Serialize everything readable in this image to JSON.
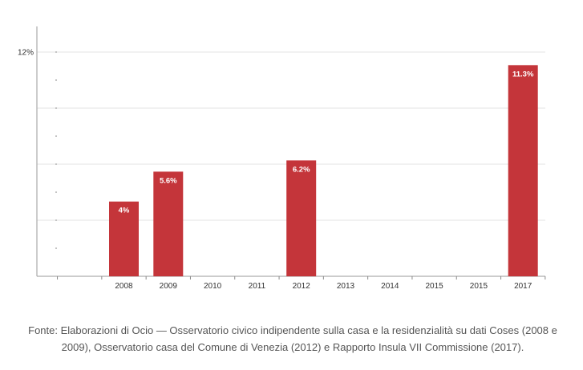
{
  "chart_data": {
    "type": "bar",
    "categories": [
      "2008",
      "2009",
      "2010",
      "2011",
      "2012",
      "2013",
      "2014",
      "2015",
      "2015",
      "2017"
    ],
    "values": [
      4,
      5.6,
      null,
      null,
      6.2,
      null,
      null,
      null,
      null,
      11.3
    ],
    "data_labels": [
      "4%",
      "5.6%",
      "",
      "",
      "6.2%",
      "",
      "",
      "",
      "",
      "11.3%"
    ],
    "y_tick_labels": [
      {
        "value": 12,
        "label": "12%"
      }
    ],
    "ylim": [
      0,
      12
    ],
    "grid": true,
    "colors": {
      "bar": "#c4353a",
      "grid": "#e3e3e3",
      "axis": "#9a9a9a",
      "label": "#333333"
    }
  },
  "caption": "Fonte: Elaborazioni di Ocio — Osservatorio civico indipendente sulla casa e la residenzialità su dati Coses (2008 e 2009), Osservatorio casa del Comune di Venezia (2012) e Rapporto Insula VII Commissione (2017)."
}
